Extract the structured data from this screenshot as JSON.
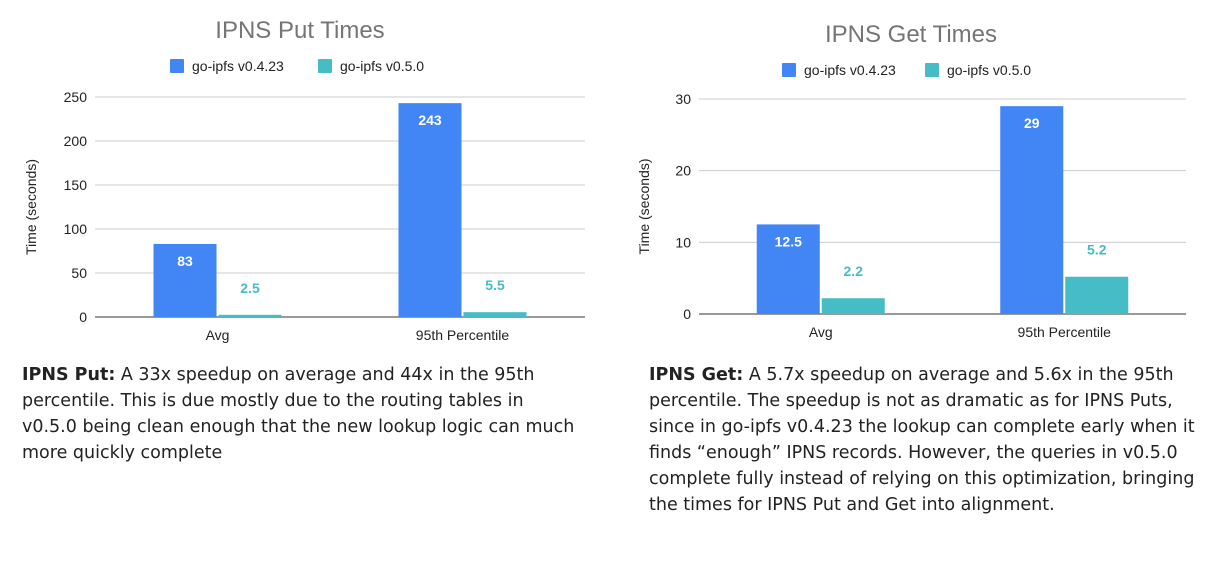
{
  "chart_data": [
    {
      "type": "bar",
      "title": "IPNS Put Times",
      "ylabel": "Time (seconds)",
      "xlabel": "",
      "categories": [
        "Avg",
        "95th Percentile"
      ],
      "ylim": [
        0,
        250
      ],
      "yticks": [
        0,
        50,
        100,
        150,
        200,
        250
      ],
      "grid": true,
      "legend_position": "top",
      "series": [
        {
          "name": "go-ipfs v0.4.23",
          "color": "#4285f4",
          "values": [
            83,
            243
          ],
          "labels": [
            "83",
            "243"
          ]
        },
        {
          "name": "go-ipfs v0.5.0",
          "color": "#46bdc6",
          "values": [
            2.5,
            5.5
          ],
          "labels": [
            "2.5",
            "5.5"
          ]
        }
      ]
    },
    {
      "type": "bar",
      "title": "IPNS Get Times",
      "ylabel": "Time (seconds)",
      "xlabel": "",
      "categories": [
        "Avg",
        "95th Percentile"
      ],
      "ylim": [
        0,
        30
      ],
      "yticks": [
        0,
        10,
        20,
        30
      ],
      "grid": true,
      "legend_position": "top",
      "series": [
        {
          "name": "go-ipfs v0.4.23",
          "color": "#4285f4",
          "values": [
            12.5,
            29
          ],
          "labels": [
            "12.5",
            "29"
          ]
        },
        {
          "name": "go-ipfs v0.5.0",
          "color": "#46bdc6",
          "values": [
            2.2,
            5.2
          ],
          "labels": [
            "2.2",
            "5.2"
          ]
        }
      ]
    }
  ],
  "captions": [
    {
      "bold": "IPNS Put:",
      "text": " A 33x speedup on average and 44x in the 95th percentile. This is due mostly due to the routing tables in v0.5.0 being clean enough that the new lookup logic can much more quickly complete"
    },
    {
      "bold": "IPNS Get:",
      "text": " A 5.7x speedup on average and 5.6x in the 95th percentile. The speedup is not as dramatic as for IPNS Puts, since in go-ipfs v0.4.23 the lookup can complete early when it finds “enough” IPNS records. However, the queries in v0.5.0 complete fully instead of relying on this optimization, bringing the times for IPNS Put and Get into alignment."
    }
  ]
}
